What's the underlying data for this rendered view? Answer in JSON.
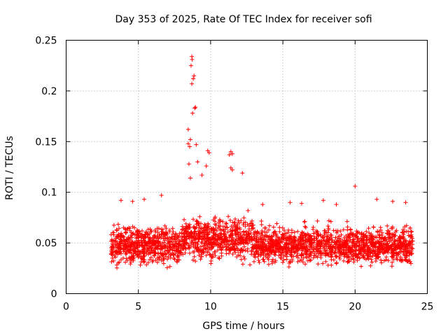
{
  "chart_data": {
    "type": "scatter",
    "title": "Day 353 of 2025, Rate Of TEC Index for receiver sofi",
    "xlabel": "GPS time / hours",
    "ylabel": "ROTI / TECUs",
    "xlim": [
      0,
      25
    ],
    "ylim": [
      0,
      0.25
    ],
    "x_ticks": [
      0,
      5,
      10,
      15,
      20,
      25
    ],
    "y_ticks": [
      0,
      0.05,
      0.1,
      0.15,
      0.2,
      0.25
    ],
    "x_tick_labels": [
      "0",
      "5",
      "10",
      "15",
      "20",
      "25"
    ],
    "y_tick_labels": [
      "0",
      "0.05",
      "0.1",
      "0.15",
      "0.2",
      "0.25"
    ],
    "grid": true,
    "marker": "plus",
    "series_color": "#ff0000",
    "data_coverage_hours": [
      3.1,
      24.0
    ],
    "typical_range": [
      0.02,
      0.08
    ],
    "series": [
      {
        "name": "ROTI",
        "points": [
          [
            8.7,
            0.234
          ],
          [
            8.72,
            0.231
          ],
          [
            8.65,
            0.225
          ],
          [
            8.85,
            0.215
          ],
          [
            8.8,
            0.212
          ],
          [
            8.7,
            0.207
          ],
          [
            8.95,
            0.184
          ],
          [
            8.9,
            0.183
          ],
          [
            8.75,
            0.178
          ],
          [
            8.45,
            0.162
          ],
          [
            8.6,
            0.152
          ],
          [
            8.45,
            0.148
          ],
          [
            8.55,
            0.145
          ],
          [
            9.0,
            0.147
          ],
          [
            9.8,
            0.141
          ],
          [
            11.4,
            0.14
          ],
          [
            11.5,
            0.138
          ],
          [
            11.3,
            0.137
          ],
          [
            9.9,
            0.139
          ],
          [
            8.5,
            0.128
          ],
          [
            9.1,
            0.13
          ],
          [
            11.4,
            0.124
          ],
          [
            11.5,
            0.122
          ],
          [
            9.7,
            0.126
          ],
          [
            12.2,
            0.119
          ],
          [
            9.4,
            0.117
          ],
          [
            8.6,
            0.114
          ],
          [
            20.0,
            0.106
          ],
          [
            6.6,
            0.097
          ],
          [
            3.8,
            0.092
          ],
          [
            4.6,
            0.091
          ],
          [
            5.4,
            0.093
          ],
          [
            15.5,
            0.09
          ],
          [
            17.8,
            0.092
          ],
          [
            21.5,
            0.093
          ],
          [
            23.5,
            0.09
          ],
          [
            18.7,
            0.088
          ],
          [
            22.6,
            0.091
          ],
          [
            16.3,
            0.089
          ],
          [
            13.6,
            0.088
          ],
          [
            3.2,
            0.052
          ],
          [
            3.2,
            0.035
          ],
          [
            3.3,
            0.045
          ],
          [
            3.3,
            0.058
          ]
        ]
      }
    ],
    "dense_band": {
      "description": "continuous dense cloud of points",
      "x_range": [
        3.1,
        24.0
      ],
      "y_center": 0.048,
      "y_spread": 0.018,
      "y_floor": 0.011,
      "y_ceiling": 0.095
    }
  }
}
